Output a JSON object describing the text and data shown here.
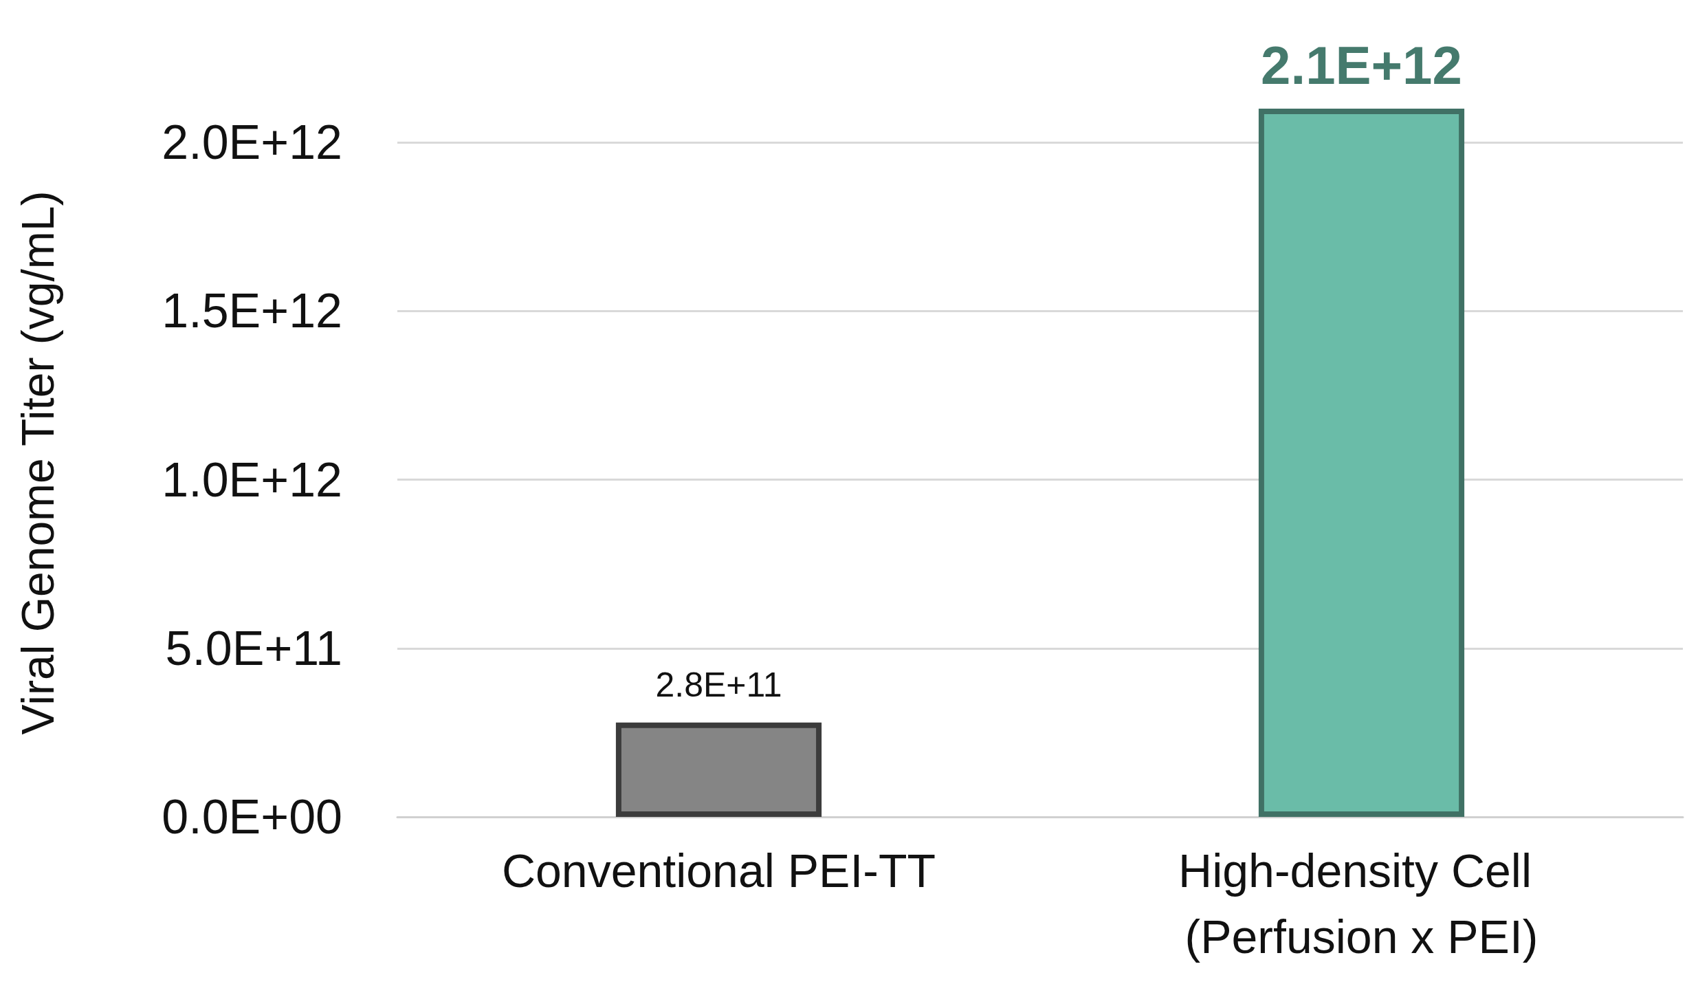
{
  "chart_data": {
    "type": "bar",
    "ylabel": "Viral Genome Titer (vg/mL)",
    "categories": [
      "Conventional PEI-TT",
      "High-density Cell (Perfusion x PEI)"
    ],
    "values": [
      280000000000.0,
      2100000000000.0
    ],
    "colors": [
      "#858585",
      "#6abca8"
    ],
    "value_labels": [
      "2.8E+11",
      "2.1E+12"
    ],
    "ylim": [
      0,
      2100000000000.0
    ],
    "yticks": [
      {
        "value": 0,
        "label": "0.0E+00"
      },
      {
        "value": 500000000000.0,
        "label": "5.0E+11"
      },
      {
        "value": 1000000000000.0,
        "label": "1.0E+12"
      },
      {
        "value": 1500000000000.0,
        "label": "1.5E+12"
      },
      {
        "value": 2000000000000.0,
        "label": "2.0E+12"
      }
    ],
    "grid": "y"
  }
}
